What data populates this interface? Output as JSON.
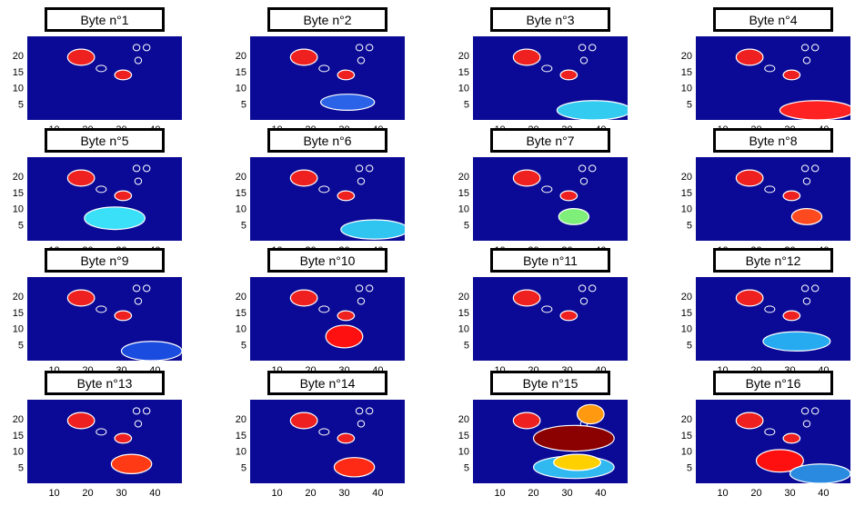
{
  "chart_data": {
    "type": "heatmap",
    "layout": {
      "rows": 4,
      "cols": 4
    },
    "xlim": [
      2,
      48
    ],
    "ylim": [
      0,
      26
    ],
    "xticks": [
      10,
      20,
      30,
      40
    ],
    "yticks": [
      5,
      10,
      15,
      20
    ],
    "background_color": "#0a0a96",
    "outline_color": "#ffffff",
    "common_features": [
      {
        "kind": "blob",
        "color": "#ee2020",
        "center": [
          18,
          19.5
        ],
        "size": [
          4,
          2.5
        ]
      },
      {
        "kind": "blob",
        "color": "#ee2020",
        "center": [
          30.5,
          14
        ],
        "size": [
          2.5,
          1.5
        ]
      },
      {
        "kind": "outline",
        "center": [
          34.5,
          22.5
        ],
        "size": [
          1,
          1
        ]
      },
      {
        "kind": "outline",
        "center": [
          37.5,
          22.5
        ],
        "size": [
          1,
          1
        ]
      },
      {
        "kind": "outline",
        "center": [
          35,
          18.5
        ],
        "size": [
          1,
          1
        ]
      },
      {
        "kind": "outline",
        "center": [
          24,
          16
        ],
        "size": [
          1.5,
          1
        ]
      }
    ],
    "subplots": [
      {
        "title": "Byte n°1",
        "blobs": []
      },
      {
        "title": "Byte n°2",
        "blobs": [
          {
            "color": "#2a62e8",
            "center": [
              31,
              5.5
            ],
            "size": [
              8,
              2.5
            ]
          }
        ]
      },
      {
        "title": "Byte n°3",
        "blobs": [
          {
            "color": "#33ccf0",
            "center": [
              38,
              3
            ],
            "size": [
              11,
              3
            ]
          }
        ]
      },
      {
        "title": "Byte n°4",
        "blobs": [
          {
            "color": "#ff2222",
            "center": [
              38,
              3
            ],
            "size": [
              11,
              3
            ]
          }
        ]
      },
      {
        "title": "Byte n°5",
        "blobs": [
          {
            "color": "#3ae0f8",
            "center": [
              28,
              7
            ],
            "size": [
              9,
              3.5
            ]
          }
        ]
      },
      {
        "title": "Byte n°6",
        "blobs": [
          {
            "color": "#30c4f0",
            "center": [
              39,
              3.5
            ],
            "size": [
              10,
              3
            ]
          }
        ]
      },
      {
        "title": "Byte n°7",
        "blobs": [
          {
            "color": "#7ef07a",
            "center": [
              32,
              7.5
            ],
            "size": [
              4.5,
              2.5
            ]
          }
        ]
      },
      {
        "title": "Byte n°8",
        "blobs": [
          {
            "color": "#ff4a20",
            "center": [
              35,
              7.5
            ],
            "size": [
              4.5,
              2.5
            ]
          }
        ]
      },
      {
        "title": "Byte n°9",
        "blobs": [
          {
            "color": "#1a4ce0",
            "center": [
              39,
              3
            ],
            "size": [
              9,
              3
            ]
          }
        ]
      },
      {
        "title": "Byte n°10",
        "blobs": [
          {
            "color": "#ff1010",
            "center": [
              30,
              7.5
            ],
            "size": [
              5.5,
              3.5
            ]
          }
        ]
      },
      {
        "title": "Byte n°11",
        "blobs": []
      },
      {
        "title": "Byte n°12",
        "blobs": [
          {
            "color": "#26aaf0",
            "center": [
              32,
              6
            ],
            "size": [
              10,
              3
            ]
          }
        ]
      },
      {
        "title": "Byte n°13",
        "blobs": [
          {
            "color": "#ff3a15",
            "center": [
              33,
              6
            ],
            "size": [
              6,
              3
            ]
          }
        ]
      },
      {
        "title": "Byte n°14",
        "blobs": [
          {
            "color": "#ff2a15",
            "center": [
              33,
              5
            ],
            "size": [
              6,
              3
            ]
          }
        ]
      },
      {
        "title": "Byte n°15",
        "blobs": [
          {
            "color": "#ff9a10",
            "center": [
              37,
              21.5
            ],
            "size": [
              4,
              3
            ]
          },
          {
            "color": "#8b0000",
            "center": [
              32,
              14
            ],
            "size": [
              12,
              4
            ]
          },
          {
            "color": "#30b8f0",
            "center": [
              32,
              5
            ],
            "size": [
              12,
              3.5
            ]
          },
          {
            "color": "#ffd000",
            "center": [
              33,
              6.5
            ],
            "size": [
              7,
              2.5
            ]
          }
        ]
      },
      {
        "title": "Byte n°16",
        "blobs": [
          {
            "color": "#ff1010",
            "center": [
              27,
              7
            ],
            "size": [
              7,
              3.5
            ]
          },
          {
            "color": "#2a8ae0",
            "center": [
              39,
              3
            ],
            "size": [
              9,
              3
            ]
          }
        ]
      }
    ]
  }
}
